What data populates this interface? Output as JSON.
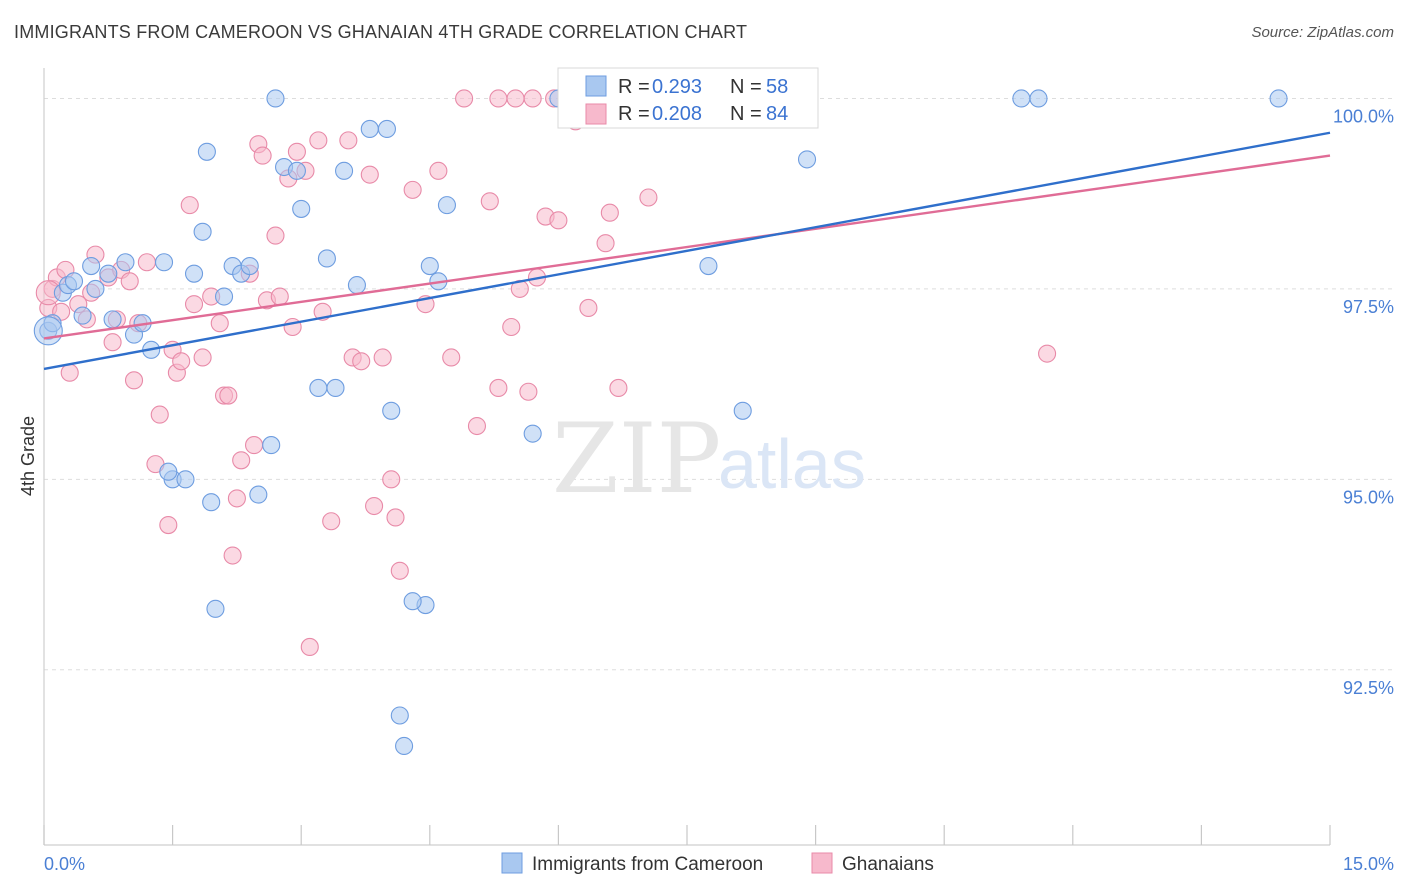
{
  "header": {
    "title": "IMMIGRANTS FROM CAMEROON VS GHANAIAN 4TH GRADE CORRELATION CHART",
    "source": "Source: ZipAtlas.com"
  },
  "watermark": {
    "zip": "ZIP",
    "atlas": "atlas"
  },
  "legend_box": {
    "rows": [
      {
        "r_label": "R = ",
        "r_value": "0.293",
        "n_label": "N = ",
        "n_value": "58",
        "color": "#a9c8f0"
      },
      {
        "r_label": "R = ",
        "r_value": "0.208",
        "n_label": "N = ",
        "n_value": "84",
        "color": "#f7b9cc"
      }
    ]
  },
  "colors": {
    "blue_fill": "#a9c8f0",
    "blue_stroke": "#6e9de0",
    "blue_line": "#2f6fcb",
    "pink_fill": "#f7b9cc",
    "pink_stroke": "#e88aa8",
    "pink_line": "#e06c96",
    "tick_text": "#4a7fd4",
    "grid": "#dddddd"
  },
  "chart_data": {
    "type": "scatter",
    "title": "IMMIGRANTS FROM CAMEROON VS GHANAIAN 4TH GRADE CORRELATION CHART",
    "xlabel": "",
    "ylabel": "4th Grade",
    "xlim": [
      0,
      15
    ],
    "ylim": [
      90.2,
      100.4
    ],
    "x_tick_labels": [
      "0.0%",
      "15.0%"
    ],
    "y_ticks": [
      92.5,
      95.0,
      97.5,
      100.0
    ],
    "y_tick_labels": [
      "92.5%",
      "95.0%",
      "97.5%",
      "100.0%"
    ],
    "grid": "horizontal dashed",
    "legend_position": "bottom",
    "series": [
      {
        "name": "Immigrants from Cameroon",
        "color": "#a9c8f0",
        "trend": {
          "x": [
            0,
            15
          ],
          "y": [
            96.45,
            99.55
          ]
        },
        "points": [
          [
            0.05,
            96.95
          ],
          [
            0.1,
            97.05
          ],
          [
            0.22,
            97.45
          ],
          [
            0.28,
            97.55
          ],
          [
            0.35,
            97.6
          ],
          [
            0.45,
            97.15
          ],
          [
            0.55,
            97.8
          ],
          [
            0.6,
            97.5
          ],
          [
            0.75,
            97.7
          ],
          [
            0.8,
            97.1
          ],
          [
            0.95,
            97.85
          ],
          [
            1.05,
            96.9
          ],
          [
            1.15,
            97.05
          ],
          [
            1.25,
            96.7
          ],
          [
            1.4,
            97.85
          ],
          [
            1.5,
            95.0
          ],
          [
            1.65,
            95.0
          ],
          [
            1.45,
            95.1
          ],
          [
            1.75,
            97.7
          ],
          [
            1.85,
            98.25
          ],
          [
            1.9,
            99.3
          ],
          [
            1.95,
            94.7
          ],
          [
            2.0,
            93.3
          ],
          [
            2.1,
            97.4
          ],
          [
            2.2,
            97.8
          ],
          [
            2.3,
            97.7
          ],
          [
            2.4,
            97.8
          ],
          [
            2.5,
            94.8
          ],
          [
            2.65,
            95.45
          ],
          [
            2.7,
            100.0
          ],
          [
            2.8,
            99.1
          ],
          [
            2.95,
            99.05
          ],
          [
            3.0,
            98.55
          ],
          [
            3.2,
            96.2
          ],
          [
            3.3,
            97.9
          ],
          [
            3.4,
            96.2
          ],
          [
            3.5,
            99.05
          ],
          [
            3.65,
            97.55
          ],
          [
            3.8,
            99.6
          ],
          [
            4.0,
            99.6
          ],
          [
            4.05,
            95.9
          ],
          [
            4.2,
            91.5
          ],
          [
            4.45,
            93.35
          ],
          [
            4.5,
            97.8
          ],
          [
            4.6,
            97.6
          ],
          [
            4.7,
            98.6
          ],
          [
            4.15,
            91.9
          ],
          [
            4.3,
            93.4
          ],
          [
            5.7,
            95.6
          ],
          [
            6.0,
            100.0
          ],
          [
            6.25,
            100.0
          ],
          [
            6.45,
            100.0
          ],
          [
            7.75,
            97.8
          ],
          [
            8.15,
            95.9
          ],
          [
            8.9,
            99.2
          ],
          [
            11.4,
            100.0
          ],
          [
            11.6,
            100.0
          ],
          [
            14.4,
            100.0
          ]
        ]
      },
      {
        "name": "Ghanaians",
        "color": "#f7b9cc",
        "trend": {
          "x": [
            0,
            15
          ],
          "y": [
            96.85,
            99.25
          ]
        },
        "points": [
          [
            0.05,
            97.25
          ],
          [
            0.1,
            97.5
          ],
          [
            0.15,
            97.65
          ],
          [
            0.2,
            97.2
          ],
          [
            0.25,
            97.75
          ],
          [
            0.3,
            96.4
          ],
          [
            0.4,
            97.3
          ],
          [
            0.5,
            97.1
          ],
          [
            0.55,
            97.45
          ],
          [
            0.6,
            97.95
          ],
          [
            0.75,
            97.65
          ],
          [
            0.8,
            96.8
          ],
          [
            0.85,
            97.1
          ],
          [
            0.9,
            97.75
          ],
          [
            1.0,
            97.6
          ],
          [
            1.05,
            96.3
          ],
          [
            1.1,
            97.05
          ],
          [
            1.2,
            97.85
          ],
          [
            1.3,
            95.2
          ],
          [
            1.35,
            95.85
          ],
          [
            1.45,
            94.4
          ],
          [
            1.5,
            96.7
          ],
          [
            1.55,
            96.4
          ],
          [
            1.6,
            96.55
          ],
          [
            1.7,
            98.6
          ],
          [
            1.75,
            97.3
          ],
          [
            1.85,
            96.6
          ],
          [
            1.95,
            97.4
          ],
          [
            2.05,
            97.05
          ],
          [
            2.1,
            96.1
          ],
          [
            2.15,
            96.1
          ],
          [
            2.2,
            94.0
          ],
          [
            2.25,
            94.75
          ],
          [
            2.3,
            95.25
          ],
          [
            2.4,
            97.7
          ],
          [
            2.45,
            95.45
          ],
          [
            2.5,
            99.4
          ],
          [
            2.55,
            99.25
          ],
          [
            2.6,
            97.35
          ],
          [
            2.7,
            98.2
          ],
          [
            2.75,
            97.4
          ],
          [
            2.85,
            98.95
          ],
          [
            2.9,
            97.0
          ],
          [
            2.95,
            99.3
          ],
          [
            3.05,
            99.05
          ],
          [
            3.1,
            92.8
          ],
          [
            3.2,
            99.45
          ],
          [
            3.25,
            97.2
          ],
          [
            3.35,
            94.45
          ],
          [
            3.55,
            99.45
          ],
          [
            3.6,
            96.6
          ],
          [
            3.7,
            96.55
          ],
          [
            3.8,
            99.0
          ],
          [
            3.85,
            94.65
          ],
          [
            3.95,
            96.6
          ],
          [
            4.05,
            95.0
          ],
          [
            4.1,
            94.5
          ],
          [
            4.15,
            93.8
          ],
          [
            4.3,
            98.8
          ],
          [
            4.45,
            97.3
          ],
          [
            4.6,
            99.05
          ],
          [
            4.75,
            96.6
          ],
          [
            4.9,
            100.0
          ],
          [
            5.05,
            95.7
          ],
          [
            5.2,
            98.65
          ],
          [
            5.3,
            96.2
          ],
          [
            5.45,
            97.0
          ],
          [
            5.5,
            100.0
          ],
          [
            5.55,
            97.5
          ],
          [
            5.65,
            96.15
          ],
          [
            5.75,
            97.65
          ],
          [
            5.85,
            98.45
          ],
          [
            6.0,
            98.4
          ],
          [
            6.2,
            99.7
          ],
          [
            6.35,
            97.25
          ],
          [
            6.55,
            98.1
          ],
          [
            6.6,
            98.5
          ],
          [
            6.7,
            96.2
          ],
          [
            7.05,
            98.7
          ],
          [
            11.7,
            96.65
          ],
          [
            5.3,
            100.0
          ],
          [
            5.7,
            100.0
          ],
          [
            5.95,
            100.0
          ],
          [
            6.9,
            100.0
          ]
        ]
      }
    ]
  },
  "bottom_legend": [
    {
      "label": "Immigrants from Cameroon",
      "color": "#a9c8f0"
    },
    {
      "label": "Ghanaians",
      "color": "#f7b9cc"
    }
  ]
}
